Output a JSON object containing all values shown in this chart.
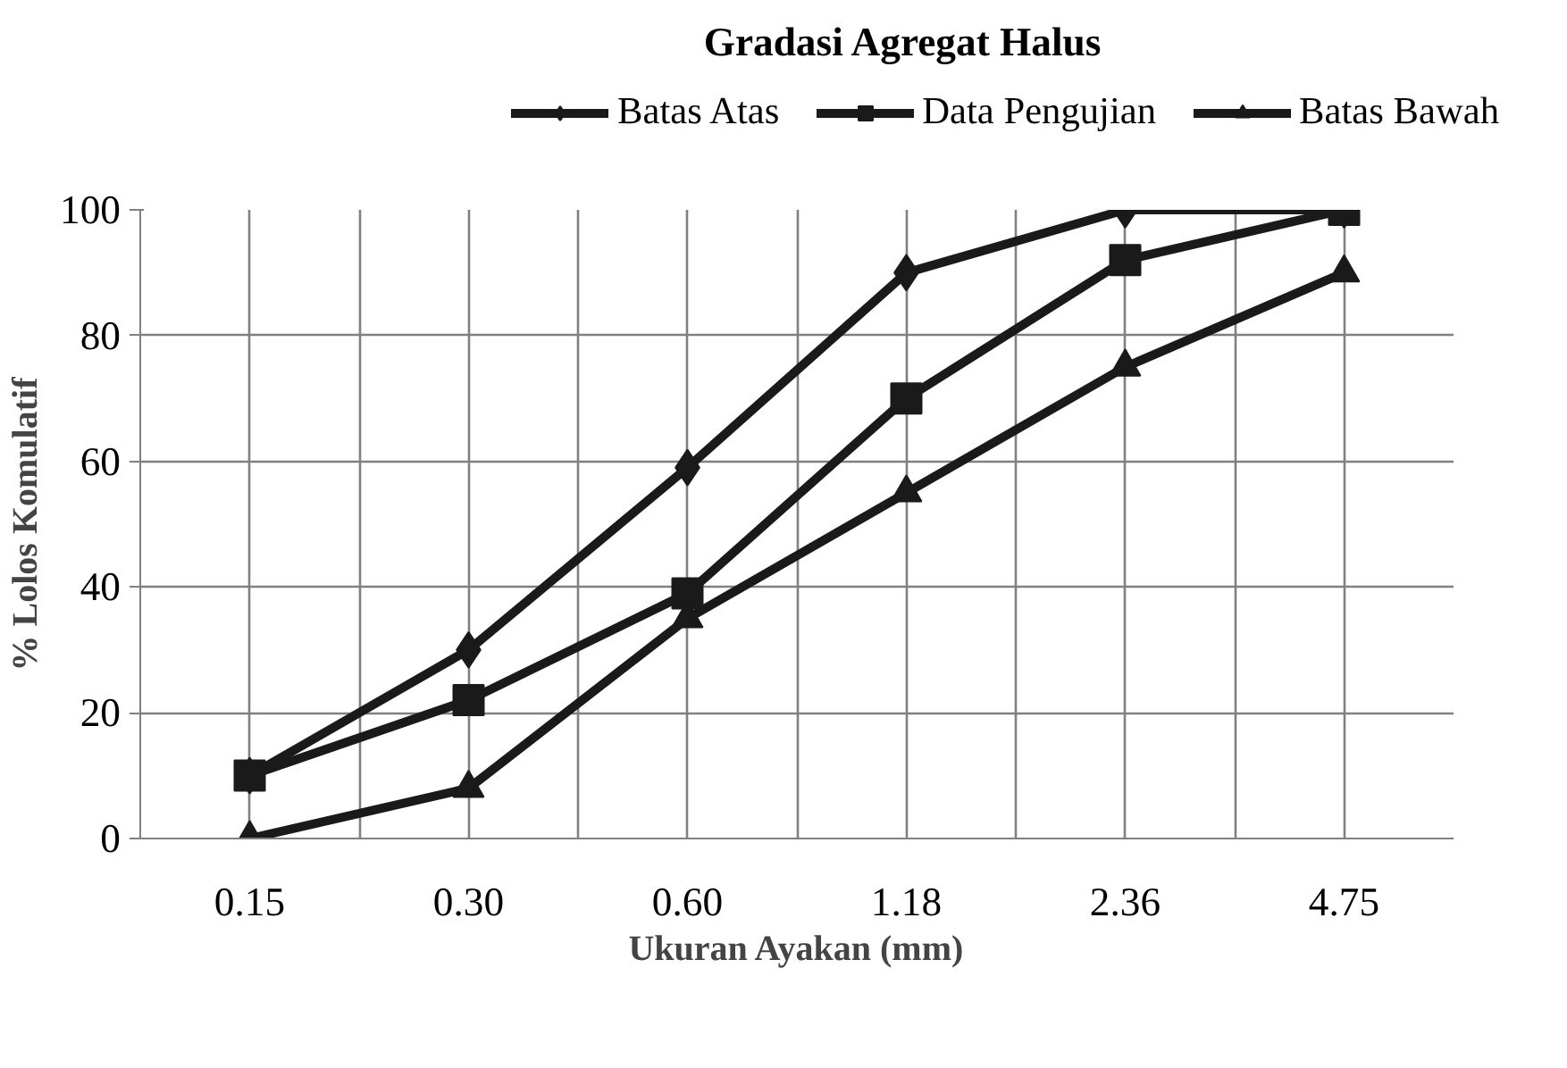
{
  "chart_data": {
    "type": "line",
    "title": "Gradasi Agregat Halus",
    "xlabel": "Ukuran Ayakan (mm)",
    "ylabel": "% Lolos Komulatif",
    "categories": [
      "0.15",
      "0.30",
      "0.60",
      "1.18",
      "2.36",
      "4.75"
    ],
    "series": [
      {
        "name": "Batas Atas",
        "color": "#1a1a1a",
        "marker": "diamond",
        "values": [
          10,
          30,
          59,
          90,
          100,
          100
        ]
      },
      {
        "name": "Data Pengujian",
        "color": "#1a1a1a",
        "marker": "square",
        "values": [
          10,
          22,
          39,
          70,
          92,
          100
        ]
      },
      {
        "name": "Batas Bawah",
        "color": "#1a1a1a",
        "marker": "triangle",
        "values": [
          0,
          8,
          35,
          55,
          75,
          90
        ]
      }
    ],
    "ylim": [
      0,
      100
    ],
    "yticks": [
      0,
      20,
      40,
      60,
      80,
      100
    ],
    "grid": true,
    "legend": "top",
    "line_style": "solid"
  }
}
